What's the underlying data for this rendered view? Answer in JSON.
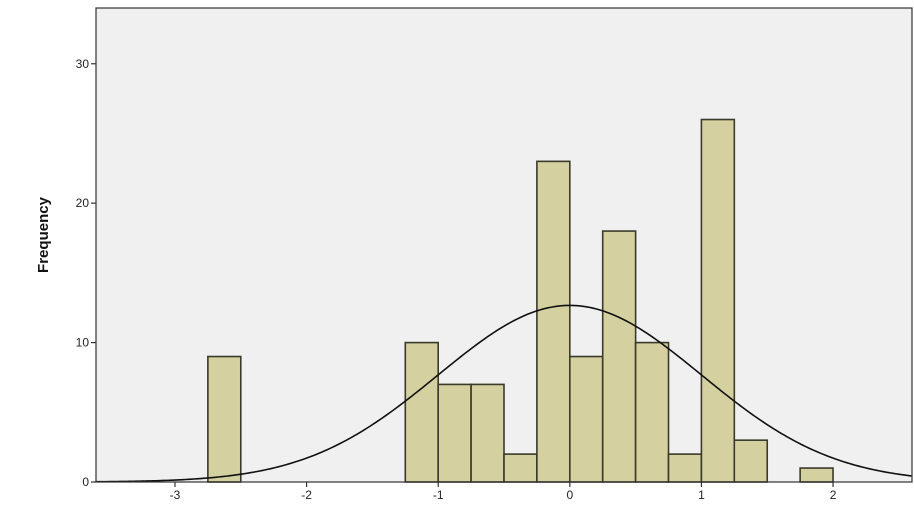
{
  "chart_data": {
    "type": "bar",
    "title": "",
    "xlabel": "",
    "ylabel": "Frequency",
    "xlim": [
      -3.6,
      2.6
    ],
    "ylim": [
      0,
      34
    ],
    "x_ticks": [
      "-3",
      "-2",
      "-1",
      "0",
      "1",
      "2"
    ],
    "y_ticks": [
      "0",
      "10",
      "20",
      "30"
    ],
    "grid": false,
    "legend": "none",
    "bin_width": 0.25,
    "bins": [
      {
        "x0": -2.75,
        "x1": -2.5,
        "value": 9
      },
      {
        "x0": -1.25,
        "x1": -1.0,
        "value": 10
      },
      {
        "x0": -1.0,
        "x1": -0.75,
        "value": 7
      },
      {
        "x0": -0.75,
        "x1": -0.5,
        "value": 7
      },
      {
        "x0": -0.5,
        "x1": -0.25,
        "value": 2
      },
      {
        "x0": -0.25,
        "x1": 0.0,
        "value": 23
      },
      {
        "x0": 0.0,
        "x1": 0.25,
        "value": 9
      },
      {
        "x0": 0.25,
        "x1": 0.5,
        "value": 18
      },
      {
        "x0": 0.5,
        "x1": 0.75,
        "value": 10
      },
      {
        "x0": 0.75,
        "x1": 1.0,
        "value": 2
      },
      {
        "x0": 1.0,
        "x1": 1.25,
        "value": 26
      },
      {
        "x0": 1.25,
        "x1": 1.5,
        "value": 3
      },
      {
        "x0": 1.75,
        "x1": 2.0,
        "value": 1
      }
    ],
    "normal_curve": {
      "mean": 0.0,
      "std_dev": 1.0,
      "n": 127
    },
    "colors": {
      "plot_background": "#f0f0f0",
      "bar_fill": "#d4d0a0",
      "bar_stroke": "#3a3a2a",
      "curve": "#111111",
      "frame": "#333333"
    }
  }
}
